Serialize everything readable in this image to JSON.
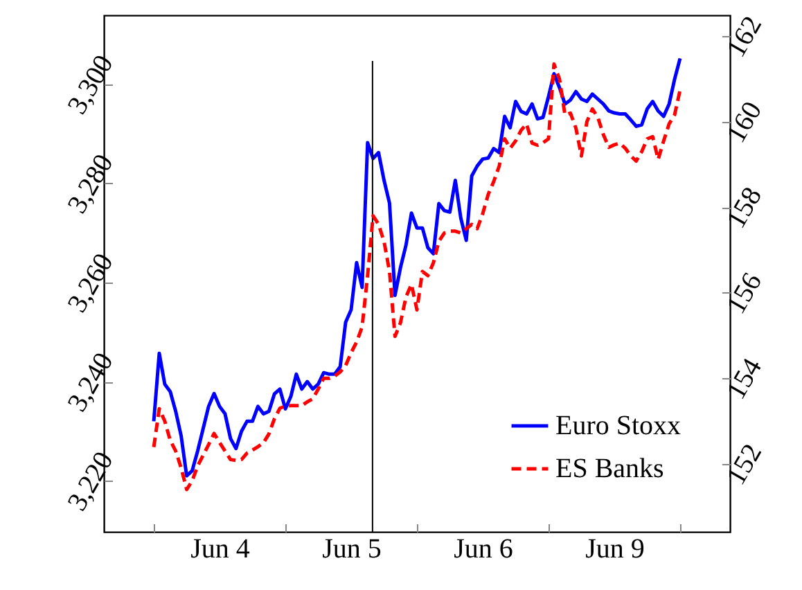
{
  "chart_data": {
    "type": "line",
    "categories": [
      null,
      null,
      null,
      null,
      null,
      null,
      null,
      null,
      null,
      null,
      null,
      null,
      "Jun 4",
      null,
      null,
      null,
      null,
      null,
      null,
      null,
      null,
      null,
      null,
      null,
      null,
      null,
      null,
      null,
      null,
      null,
      null,
      null,
      null,
      null,
      null,
      null,
      "Jun 5",
      null,
      null,
      null,
      null,
      null,
      null,
      null,
      null,
      null,
      null,
      null,
      null,
      null,
      null,
      null,
      null,
      null,
      null,
      null,
      null,
      null,
      null,
      null,
      "Jun 6",
      null,
      null,
      null,
      null,
      null,
      null,
      null,
      null,
      null,
      null,
      null,
      null,
      null,
      null,
      null,
      null,
      null,
      null,
      null,
      null,
      null,
      null,
      null,
      "Jun 9",
      null,
      null,
      null,
      null,
      null,
      null,
      null,
      null,
      null,
      null,
      null,
      null
    ],
    "ylim": [
      3209.7,
      3313.9
    ],
    "yticks": [
      {
        "value": 3220,
        "label": "3,220"
      },
      {
        "value": 3240,
        "label": "3,240"
      },
      {
        "value": 3260,
        "label": "3,260"
      },
      {
        "value": 3280,
        "label": "3,280"
      },
      {
        "value": 3300,
        "label": "3,300"
      }
    ],
    "y2lim": [
      150.41,
      162.49
    ],
    "y2ticks": [
      152,
      154,
      156,
      158,
      160,
      162
    ],
    "grid": false,
    "legend": "bottom right",
    "marker": "none",
    "series": [
      {
        "name": "Euro Stoxx",
        "color": "#0000ff",
        "line_style": "solid",
        "values": [
          3232,
          3245.7,
          3239.5,
          3238,
          3234,
          3229,
          3221,
          3222,
          3226,
          3230.5,
          3235,
          3237.6,
          3235,
          3233.5,
          3228.5,
          3226.5,
          3230,
          3232,
          3232,
          3235,
          3233.5,
          3234,
          3237.5,
          3238.5,
          3234.5,
          3237,
          3241.5,
          3238.5,
          3240,
          3238.5,
          3239.5,
          3241.8,
          3241.5,
          3241.5,
          3243,
          3252,
          3254.5,
          3264,
          3259,
          3288.2,
          3285,
          3286.2,
          3280.6,
          3276,
          3257.4,
          3263,
          3267.5,
          3274,
          3271,
          3271,
          3267,
          3265.8,
          3275.9,
          3274.5,
          3274.2,
          3280.6,
          3273,
          3268.5,
          3281.5,
          3283.5,
          3284.9,
          3285.1,
          3287,
          3286.2,
          3293.5,
          3291.2,
          3296.5,
          3294.5,
          3294,
          3296,
          3293,
          3293.3,
          3297.5,
          3302.1,
          3299.3,
          3296,
          3296.8,
          3298.5,
          3297,
          3296.5,
          3298,
          3297,
          3296,
          3294.6,
          3294.2,
          3294,
          3294,
          3292.8,
          3291.5,
          3291.8,
          3295,
          3296.5,
          3294.6,
          3293.5,
          3296,
          3301,
          3305.2
        ]
      },
      {
        "name": "ES Banks",
        "color": "#ff0000",
        "line_style": "dashed",
        "axis": "y2",
        "values": [
          152.39,
          153.29,
          153.0,
          152.55,
          152.3,
          151.9,
          151.4,
          151.6,
          151.95,
          152.2,
          152.45,
          152.71,
          152.5,
          152.3,
          152.1,
          152.08,
          152.1,
          152.25,
          152.32,
          152.4,
          152.49,
          152.7,
          153.05,
          153.3,
          153.35,
          153.36,
          153.36,
          153.36,
          153.45,
          153.52,
          153.75,
          154.0,
          154.0,
          154.05,
          154.15,
          154.3,
          154.6,
          154.85,
          155.2,
          156.4,
          157.8,
          157.6,
          157.2,
          156.5,
          154.98,
          155.3,
          155.9,
          156.2,
          155.6,
          156.5,
          156.4,
          156.7,
          157.2,
          157.4,
          157.44,
          157.44,
          157.4,
          157.5,
          157.6,
          157.5,
          157.85,
          158.3,
          158.6,
          158.96,
          159.6,
          159.38,
          159.55,
          159.8,
          159.95,
          159.5,
          159.45,
          159.51,
          159.6,
          161.35,
          161.0,
          160.16,
          160.2,
          159.85,
          159.2,
          160.0,
          160.3,
          160.1,
          159.7,
          159.4,
          159.46,
          159.5,
          159.38,
          159.2,
          159.08,
          159.3,
          159.6,
          159.65,
          159.12,
          159.55,
          159.95,
          160.16,
          160.74
        ]
      }
    ]
  }
}
